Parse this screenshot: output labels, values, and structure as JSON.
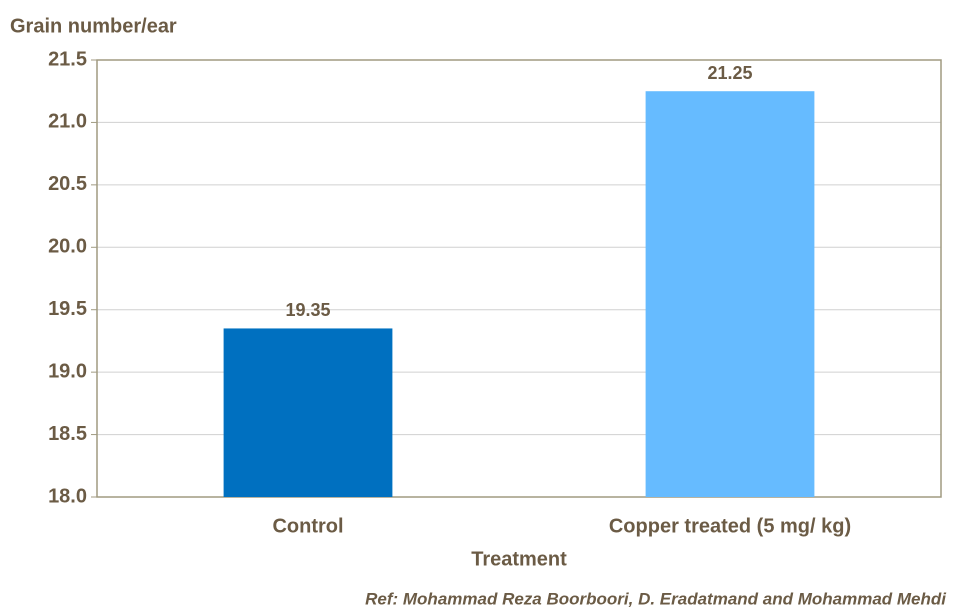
{
  "chart_data": {
    "type": "bar",
    "y_label": "Grain number/ear",
    "x_label": "Treatment",
    "note": "Ref: Mohammad Reza Boorboori,  D. Eradatmand and Mohammad Mehdi",
    "categories": [
      "Control",
      "Copper treated (5 mg/ kg)"
    ],
    "values": [
      19.35,
      21.25
    ],
    "colors": [
      "#0070c0",
      "#66bbff"
    ],
    "ylim": [
      18,
      21.5
    ],
    "yticks": [
      {
        "value": 18,
        "label": "18.0"
      },
      18.5,
      {
        "value": 19,
        "label": "19.0"
      },
      19.5,
      {
        "value": 20,
        "label": "20.0"
      },
      20.5,
      {
        "value": 21,
        "label": "21.0"
      },
      21.5
    ],
    "grid": true
  }
}
